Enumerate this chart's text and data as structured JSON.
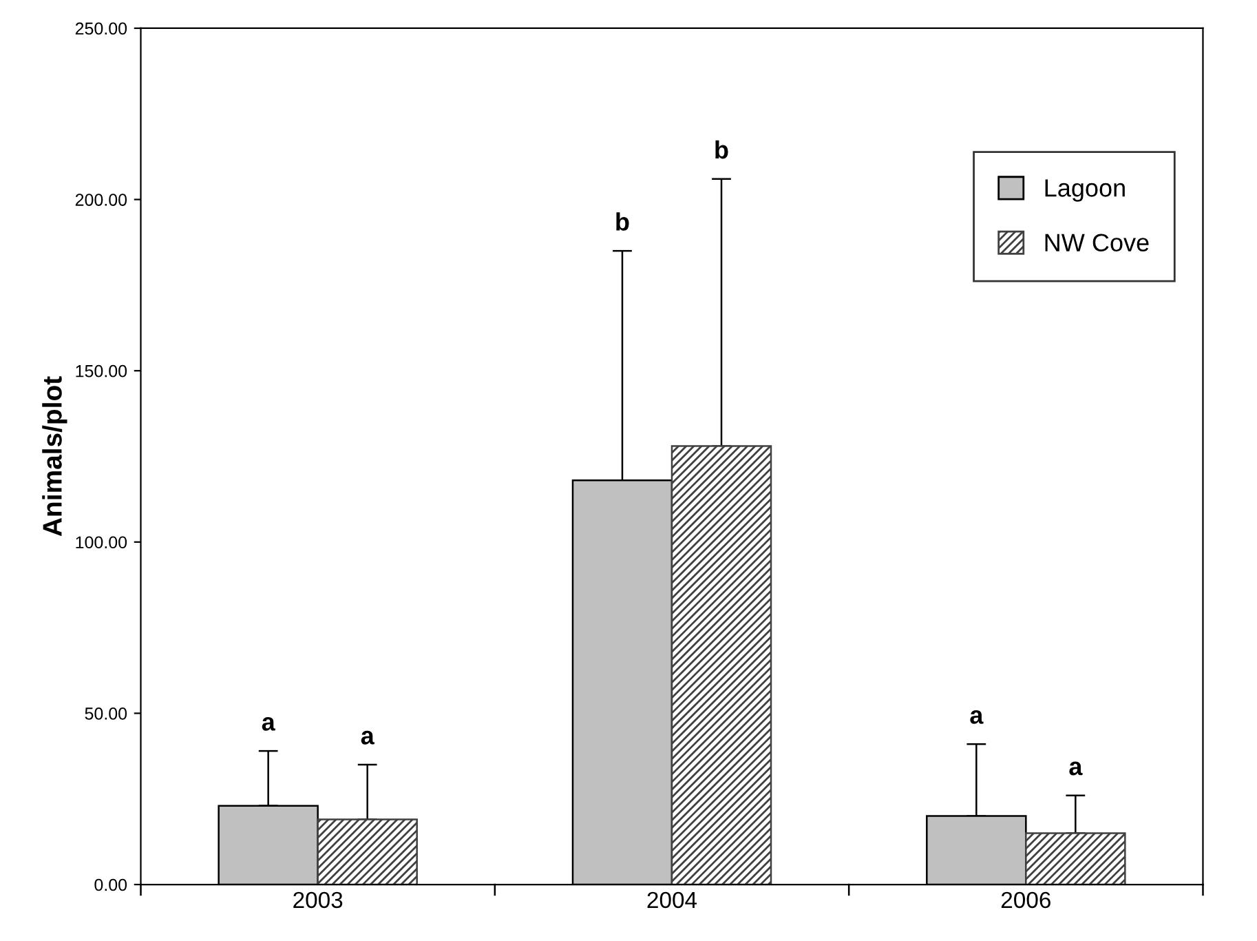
{
  "chart_data": {
    "type": "bar",
    "ylabel": "Animals/plot",
    "categories": [
      "2003",
      "2004",
      "2006"
    ],
    "series": [
      {
        "name": "Lagoon",
        "color": "#c0c0c0",
        "values": [
          23,
          118,
          20
        ],
        "errors": [
          [
            23,
            39
          ],
          [
            118,
            185
          ],
          [
            20,
            41
          ]
        ]
      },
      {
        "name": "NW Cove",
        "color": "#404040",
        "values": [
          19,
          128,
          15
        ],
        "errors": [
          [
            19,
            35
          ],
          [
            128,
            206
          ],
          [
            15,
            26
          ]
        ]
      }
    ],
    "ylim": [
      0,
      250
    ],
    "yticks": [
      {
        "value": 0,
        "label": "0.00"
      },
      {
        "value": 50,
        "label": "50.00"
      },
      {
        "value": 100,
        "label": "100.00"
      },
      {
        "value": 150,
        "label": "150.00"
      },
      {
        "value": 200,
        "label": "200.00"
      },
      {
        "value": 250,
        "label": "250.00"
      }
    ],
    "annotations": [
      "a",
      "a",
      "b",
      "b",
      "a",
      "a"
    ],
    "legend": "top right",
    "grid": false
  }
}
